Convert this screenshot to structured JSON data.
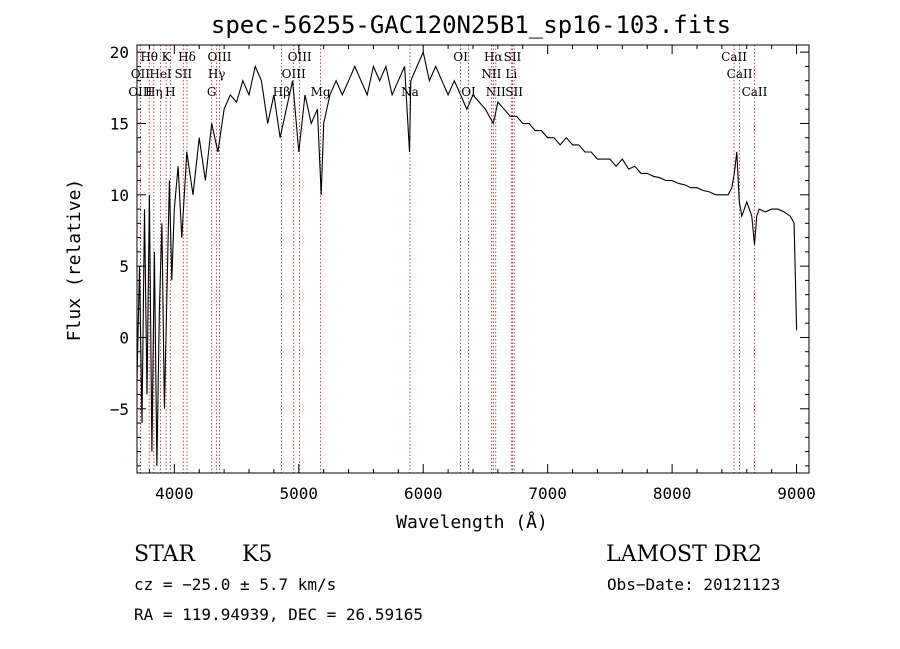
{
  "chart_data": {
    "type": "line",
    "title": "spec-56255-GAC120N25B1_sp16-103.fits",
    "xlabel": "Wavelength (Å)",
    "ylabel": "Flux (relative)",
    "xlim": [
      3700,
      9100
    ],
    "ylim": [
      -9.5,
      20.5
    ],
    "xticks": [
      4000,
      5000,
      6000,
      7000,
      8000,
      9000
    ],
    "yticks": [
      -5,
      0,
      5,
      10,
      15,
      20
    ],
    "grid": false,
    "legend": "none",
    "series": [
      {
        "x": [
          3700,
          3720,
          3740,
          3760,
          3780,
          3800,
          3820,
          3840,
          3860,
          3880,
          3900,
          3920,
          3940,
          3960,
          3980,
          4000,
          4030,
          4060,
          4100,
          4150,
          4200,
          4250,
          4300,
          4350,
          4400,
          4450,
          4500,
          4550,
          4600,
          4650,
          4700,
          4750,
          4800,
          4850,
          4900,
          4950,
          5000,
          5050,
          5100,
          5150,
          5180,
          5200,
          5250,
          5300,
          5350,
          5400,
          5450,
          5500,
          5550,
          5600,
          5650,
          5700,
          5750,
          5800,
          5850,
          5890,
          5900,
          5950,
          6000,
          6050,
          6100,
          6150,
          6200,
          6250,
          6300,
          6350,
          6400,
          6450,
          6500,
          6563,
          6600,
          6650,
          6700,
          6750,
          6800,
          6850,
          6900,
          6950,
          7000,
          7050,
          7100,
          7150,
          7200,
          7250,
          7300,
          7350,
          7400,
          7450,
          7500,
          7550,
          7600,
          7650,
          7700,
          7750,
          7800,
          7850,
          7900,
          7950,
          8000,
          8050,
          8100,
          8150,
          8200,
          8250,
          8300,
          8350,
          8400,
          8450,
          8480,
          8500,
          8520,
          8540,
          8560,
          8580,
          8600,
          8620,
          8640,
          8662,
          8680,
          8700,
          8750,
          8800,
          8850,
          8900,
          8950,
          8980,
          9000
        ],
        "y": [
          -3,
          5,
          -6,
          9,
          -4,
          10,
          -8,
          6,
          -9,
          2,
          8,
          -5,
          3,
          11,
          4,
          9,
          12,
          7,
          13,
          10,
          14,
          11,
          15,
          13,
          16,
          17,
          16.5,
          18,
          17,
          19,
          18,
          15,
          17,
          14,
          16,
          18,
          13,
          17,
          15,
          16,
          10,
          15,
          17,
          18,
          17,
          18,
          19,
          18,
          17,
          19,
          18,
          19,
          17,
          18,
          19,
          13,
          18,
          19,
          20,
          18,
          19,
          18,
          17,
          18,
          17,
          16,
          17,
          16.5,
          16,
          15,
          16.5,
          16,
          15.5,
          15.5,
          15,
          15,
          14.5,
          14.5,
          14,
          14,
          13.5,
          14,
          13.5,
          13.5,
          13,
          13,
          12.5,
          12.5,
          12.5,
          12,
          12.5,
          11.8,
          12,
          11.5,
          11.5,
          11.3,
          11.2,
          11,
          11,
          10.8,
          10.7,
          10.5,
          10.5,
          10.3,
          10.2,
          10,
          10,
          10,
          10.5,
          11.5,
          13,
          9.5,
          8.5,
          9,
          9.5,
          9,
          8.5,
          6.5,
          8.5,
          9,
          8.8,
          9,
          9,
          8.8,
          8.5,
          8,
          0.5
        ]
      }
    ],
    "spectral_lines": [
      {
        "label": "Hθ",
        "wave": 3798,
        "row": 0
      },
      {
        "label": "K",
        "wave": 3934,
        "row": 0
      },
      {
        "label": "Hδ",
        "wave": 4102,
        "row": 0
      },
      {
        "label": "OIII",
        "wave": 4363,
        "row": 0
      },
      {
        "label": "OIII",
        "wave": 5007,
        "row": 0
      },
      {
        "label": "OI",
        "wave": 6300,
        "row": 0
      },
      {
        "label": "Hα",
        "wave": 6563,
        "row": 0
      },
      {
        "label": "SII",
        "wave": 6717,
        "row": 0
      },
      {
        "label": "CaII",
        "wave": 8498,
        "row": 0
      },
      {
        "label": "OII",
        "wave": 3727,
        "row": 1
      },
      {
        "label": "HeI",
        "wave": 3889,
        "row": 1
      },
      {
        "label": "SII",
        "wave": 4072,
        "row": 1
      },
      {
        "label": "Hγ",
        "wave": 4340,
        "row": 1
      },
      {
        "label": "OIII",
        "wave": 4959,
        "row": 1
      },
      {
        "label": "NII",
        "wave": 6548,
        "row": 1
      },
      {
        "label": "Li",
        "wave": 6708,
        "row": 1
      },
      {
        "label": "CaII",
        "wave": 8542,
        "row": 1
      },
      {
        "label": "OIII",
        "wave": 3727,
        "row": 2
      },
      {
        "label": "Hη",
        "wave": 3835,
        "row": 2
      },
      {
        "label": "H",
        "wave": 3968,
        "row": 2
      },
      {
        "label": "G",
        "wave": 4300,
        "row": 2
      },
      {
        "label": "Hβ",
        "wave": 4861,
        "row": 2
      },
      {
        "label": "Mg",
        "wave": 5175,
        "row": 2
      },
      {
        "label": "Na",
        "wave": 5893,
        "row": 2
      },
      {
        "label": "OI",
        "wave": 6364,
        "row": 2
      },
      {
        "label": "NII",
        "wave": 6583,
        "row": 2
      },
      {
        "label": "SII",
        "wave": 6731,
        "row": 2
      },
      {
        "label": "CaII",
        "wave": 8662,
        "row": 2
      }
    ]
  },
  "info": {
    "class_label": "STAR",
    "subclass": "K5",
    "survey": "LAMOST DR2",
    "cz": "cz = −25.0 ± 5.7 km/s",
    "obs_date": "Obs−Date: 20121123",
    "radec": "RA = 119.94939, DEC =  26.59165"
  }
}
